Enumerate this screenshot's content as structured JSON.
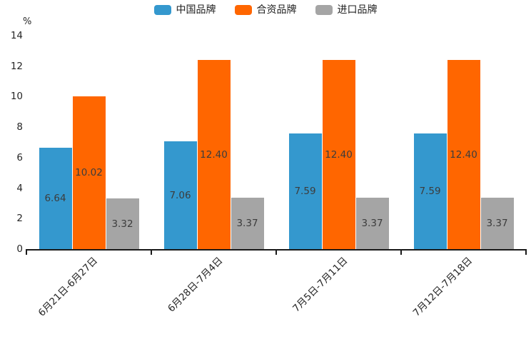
{
  "chart_data": {
    "type": "bar",
    "title": "",
    "legend_position": "top",
    "grid": false,
    "categories": [
      "6月21日-6月27日",
      "6月28日-7月4日",
      "7月5日-7月11日",
      "7月12日-7月18日"
    ],
    "series": [
      {
        "name": "中国品牌",
        "color": "#3498CE",
        "values": [
          6.64,
          7.06,
          7.59,
          7.59
        ]
      },
      {
        "name": "合资品牌",
        "color": "#FF6600",
        "values": [
          10.02,
          12.4,
          12.4,
          12.4
        ]
      },
      {
        "name": "进口品牌",
        "color": "#A5A5A5",
        "values": [
          3.32,
          3.37,
          3.37,
          3.37
        ]
      }
    ],
    "value_labels": [
      [
        "6.64",
        "7.06",
        "7.59",
        "7.59"
      ],
      [
        "10.02",
        "12.40",
        "12.40",
        "12.40"
      ],
      [
        "3.32",
        "3.37",
        "3.37",
        "3.37"
      ]
    ],
    "y_axis": {
      "label": "%",
      "min": 0,
      "max": 14,
      "tick_step": 2,
      "ticks": [
        0,
        2,
        4,
        6,
        8,
        10,
        12,
        14
      ]
    },
    "colors": {
      "axis": "#1a1a1a",
      "tick_text": "#262626",
      "value_text": "#3c3c3c",
      "background": "#ffffff"
    }
  }
}
